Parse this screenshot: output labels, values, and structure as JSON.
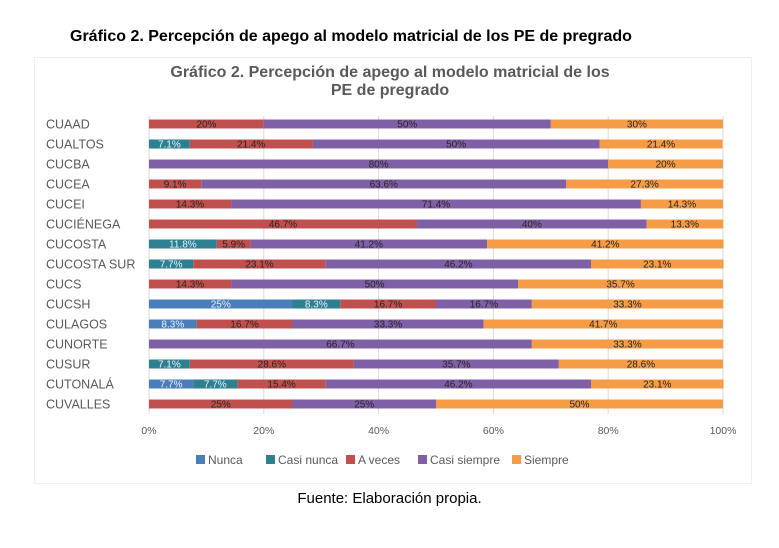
{
  "document": {
    "title": "Gráfico 2. Percepción de apego al modelo matricial de los PE de pregrado",
    "caption": "Fuente: Elaboración propia."
  },
  "chart_data": {
    "type": "bar",
    "orientation": "horizontal",
    "stacked": "percent",
    "title_lines": [
      "Gráfico 2. Percepción de apego al modelo matricial de los",
      "PE de pregrado"
    ],
    "categories": [
      "CUAAD",
      "CUALTOS",
      "CUCBA",
      "CUCEA",
      "CUCEI",
      "CUCIÉNEGA",
      "CUCOSTA",
      "CUCOSTA SUR",
      "CUCS",
      "CUCSH",
      "CULAGOS",
      "CUNORTE",
      "CUSUR",
      "CUTONALÁ",
      "CUVALLES"
    ],
    "series": [
      {
        "name": "Nunca",
        "color": "#4a7ebb",
        "values": [
          0,
          0,
          0,
          0,
          0,
          0,
          0,
          0,
          0,
          25,
          8.3,
          0,
          0,
          7.7,
          0
        ],
        "labels": [
          "",
          "",
          "",
          "",
          "",
          "",
          "",
          "",
          "",
          "25%",
          "8.3%",
          "",
          "",
          "7.7%",
          ""
        ]
      },
      {
        "name": "Casi nunca",
        "color": "#2e8090",
        "values": [
          0,
          7.1,
          0,
          0,
          0,
          0,
          11.8,
          7.7,
          0,
          8.3,
          0,
          0,
          7.1,
          7.7,
          0
        ],
        "labels": [
          "",
          "7.1%",
          "",
          "",
          "",
          "",
          "11.8%",
          "7.7%",
          "",
          "8.3%",
          "",
          "",
          "7.1%",
          "7.7%",
          ""
        ]
      },
      {
        "name": "A veces",
        "color": "#c0504d",
        "values": [
          20,
          21.4,
          0,
          9.1,
          14.3,
          46.7,
          5.9,
          23.1,
          14.3,
          16.7,
          16.7,
          0,
          28.6,
          15.4,
          25
        ],
        "labels": [
          "20%",
          "21.4%",
          "",
          "9.1%",
          "14.3%",
          "46.7%",
          "5.9%",
          "23.1%",
          "14.3%",
          "16.7%",
          "16.7%",
          "",
          "28.6%",
          "15.4%",
          "25%"
        ]
      },
      {
        "name": "Casi siempre",
        "color": "#7f5fa5",
        "values": [
          50,
          50,
          80,
          63.6,
          71.4,
          40,
          41.2,
          46.2,
          50,
          16.7,
          33.3,
          66.7,
          35.7,
          46.2,
          25
        ],
        "labels": [
          "50%",
          "50%",
          "80%",
          "63.6%",
          "71.4%",
          "40%",
          "41.2%",
          "46.2%",
          "50%",
          "16.7%",
          "33.3%",
          "66.7%",
          "35.7%",
          "46.2%",
          "25%"
        ]
      },
      {
        "name": "Siempre",
        "color": "#f69b46",
        "values": [
          30,
          21.4,
          20,
          27.3,
          14.3,
          13.3,
          41.2,
          23.1,
          35.7,
          33.3,
          41.7,
          33.3,
          28.6,
          23.1,
          50
        ],
        "labels": [
          "30%",
          "21.4%",
          "20%",
          "27.3%",
          "14.3%",
          "13.3%",
          "41.2%",
          "23.1%",
          "35.7%",
          "33.3%",
          "41.7%",
          "33.3%",
          "28.6%",
          "23.1%",
          "50%"
        ]
      }
    ],
    "x_ticks": [
      "0%",
      "20%",
      "40%",
      "60%",
      "80%",
      "100%"
    ],
    "xlim": [
      0,
      100
    ],
    "grid": true,
    "legend_position": "bottom"
  }
}
